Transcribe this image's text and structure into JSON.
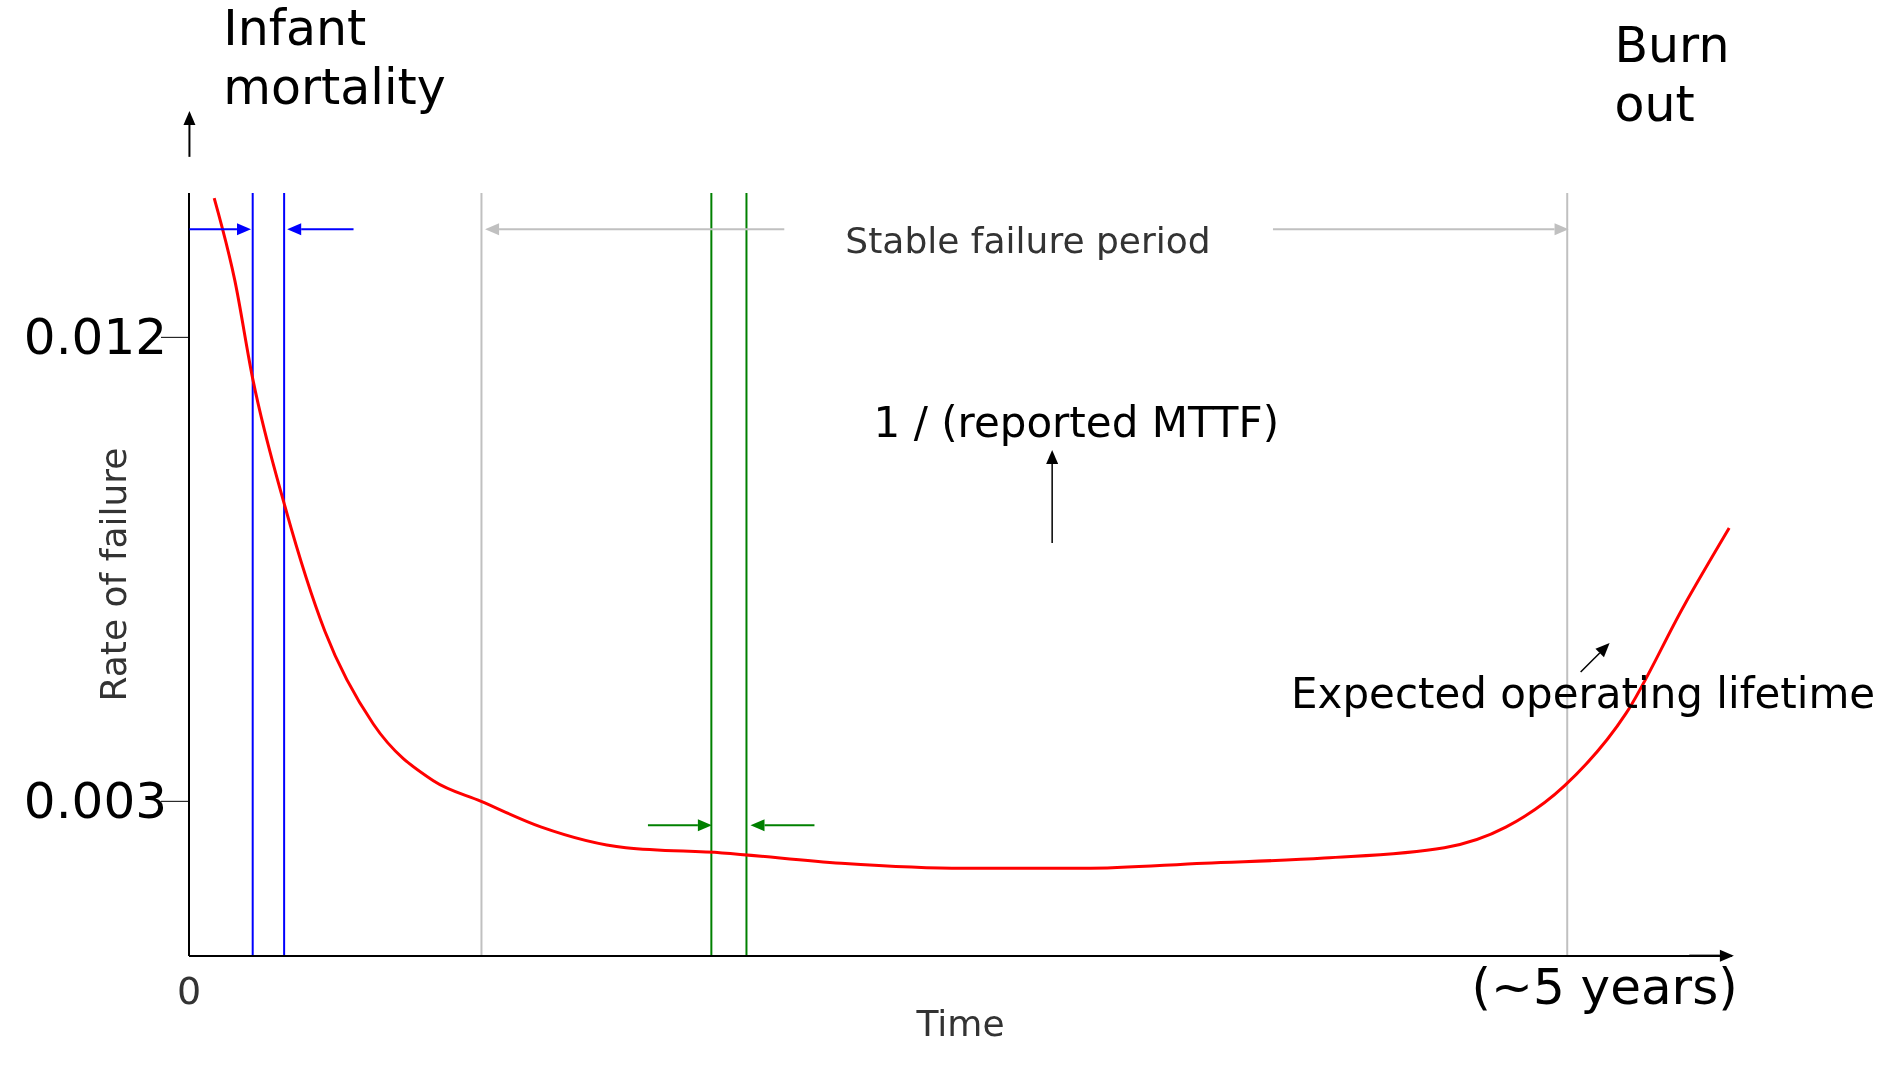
{
  "chart_data": {
    "type": "line",
    "xlabel": "Time",
    "ylabel": "Rate of failure",
    "annotations": [
      "Infant mortality",
      "Burn out",
      "Stable failure period",
      "1 / (reported MTTF)",
      "Expected operating lifetime"
    ],
    "xlim": [
      0,
      5.45
    ],
    "xticks": [
      0,
      {
        "value": 5,
        "label": "(~5 years)"
      }
    ],
    "ylim": [
      0,
      0.0148
    ],
    "yticks": [
      0.003,
      0.012
    ],
    "grid": false,
    "marker": "none",
    "line_style": "solid",
    "tick_labels": "xy",
    "series": [
      {
        "color": "#ff0000",
        "x": [
          0.089,
          0.162,
          0.225,
          0.34,
          0.48,
          0.651,
          0.863,
          1.032,
          1.245,
          1.543,
          1.883,
          2.304,
          2.734,
          3.159,
          3.586,
          4.01,
          4.434,
          4.651,
          4.858,
          5.075,
          5.281,
          5.44
        ],
        "values": [
          0.0147,
          0.0131,
          0.0112,
          0.0087,
          0.0063,
          0.0045,
          0.0034,
          0.003,
          0.0025,
          0.0021,
          0.002,
          0.0018,
          0.0017,
          0.0017,
          0.0018,
          0.0019,
          0.0021,
          0.0025,
          0.0033,
          0.0047,
          0.0068,
          0.0083
        ]
      }
    ],
    "ref_lines": [
      {
        "axis": "x",
        "value": 0.225,
        "label": null,
        "color": "#0000ff"
      },
      {
        "axis": "x",
        "value": 0.336,
        "label": null,
        "color": "#0000ff"
      },
      {
        "axis": "x",
        "value": 1.033,
        "label": null,
        "color": "#c0c0c0"
      },
      {
        "axis": "x",
        "value": 1.845,
        "label": null,
        "color": "#008000"
      },
      {
        "axis": "x",
        "value": 1.969,
        "label": null,
        "color": "#008000"
      },
      {
        "axis": "x",
        "value": 4.868,
        "label": null,
        "color": "#c0c0c0"
      }
    ]
  }
}
